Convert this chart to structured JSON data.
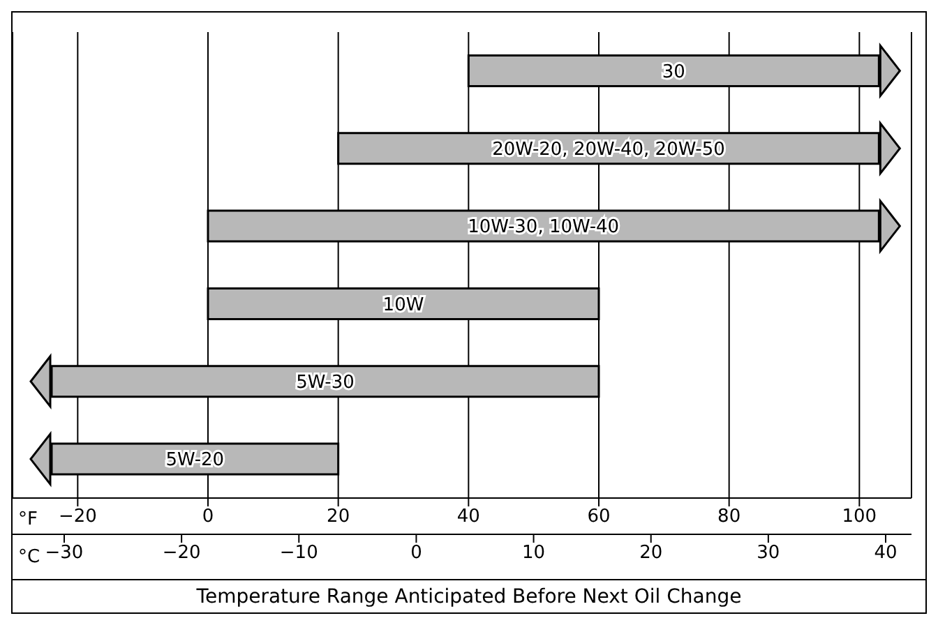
{
  "chart_data": {
    "type": "bar",
    "orientation": "horizontal",
    "categories": [
      "30",
      "20W-20, 20W-40, 20W-50",
      "10W-30, 10W-40",
      "10W",
      "5W-30",
      "5W-20"
    ],
    "base": [
      40,
      20,
      0,
      0,
      -24,
      -24
    ],
    "values": [
      63,
      83,
      103,
      60,
      84,
      44
    ],
    "color": "#b8b8b8",
    "xlim": [
      -30,
      108
    ],
    "xticks": [
      -20,
      0,
      20,
      40,
      60,
      80,
      100
    ],
    "x2lim": [
      -34.4,
      42.2
    ],
    "x2ticks": [
      -30,
      -20,
      -10,
      0,
      10,
      20,
      30,
      40
    ],
    "xlabel": "Temperature Range Anticipated Before Next Oil Change",
    "annotations": [
      "°F",
      "°C"
    ],
    "grid": "x"
  }
}
